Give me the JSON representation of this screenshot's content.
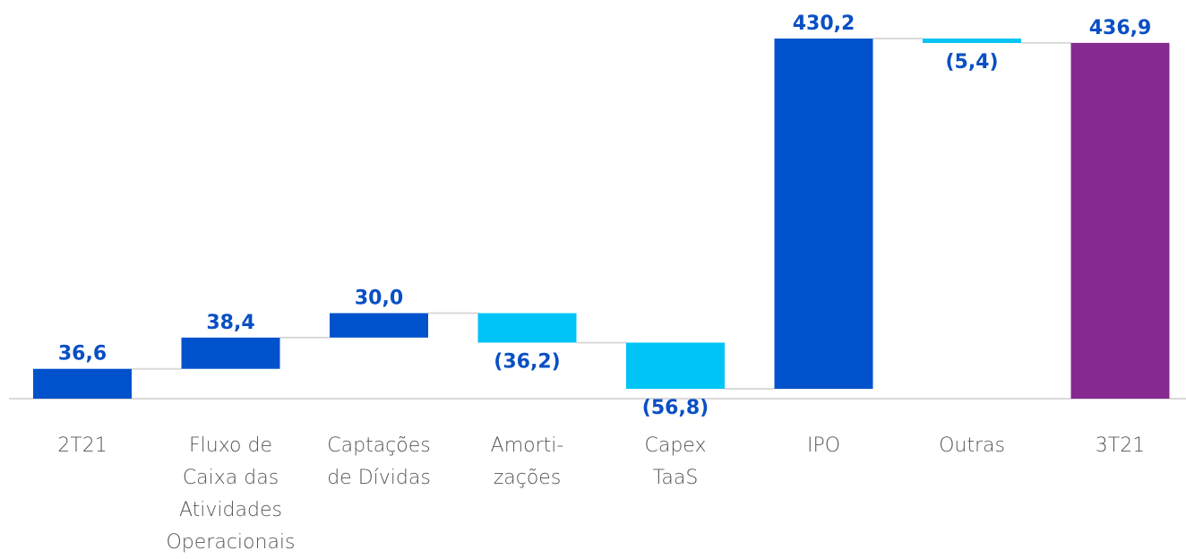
{
  "chart_data": {
    "type": "waterfall",
    "categories": [
      [
        "2T21"
      ],
      [
        "Fluxo de",
        "Caixa das",
        "Atividades",
        "Operacionais"
      ],
      [
        "Captações",
        "de Dívidas"
      ],
      [
        "Amorti-",
        "zações"
      ],
      [
        "Capex",
        "TaaS"
      ],
      [
        "IPO"
      ],
      [
        "Outras"
      ],
      [
        "3T21"
      ]
    ],
    "values": [
      36.6,
      38.4,
      30.0,
      -36.2,
      -56.8,
      430.2,
      -5.4,
      436.9
    ],
    "value_labels": [
      "36,6",
      "38,4",
      "30,0",
      "(36,2)",
      "(56,8)",
      "430,2",
      "(5,4)",
      "436,9"
    ],
    "kinds": [
      "total",
      "step",
      "step",
      "step",
      "step",
      "step",
      "step",
      "total"
    ],
    "colors": [
      "#0052cc",
      "#0052cc",
      "#0052cc",
      "#00c4f5",
      "#00c4f5",
      "#0052cc",
      "#00c4f5",
      "#862990"
    ],
    "ylim": [
      0,
      440
    ]
  }
}
